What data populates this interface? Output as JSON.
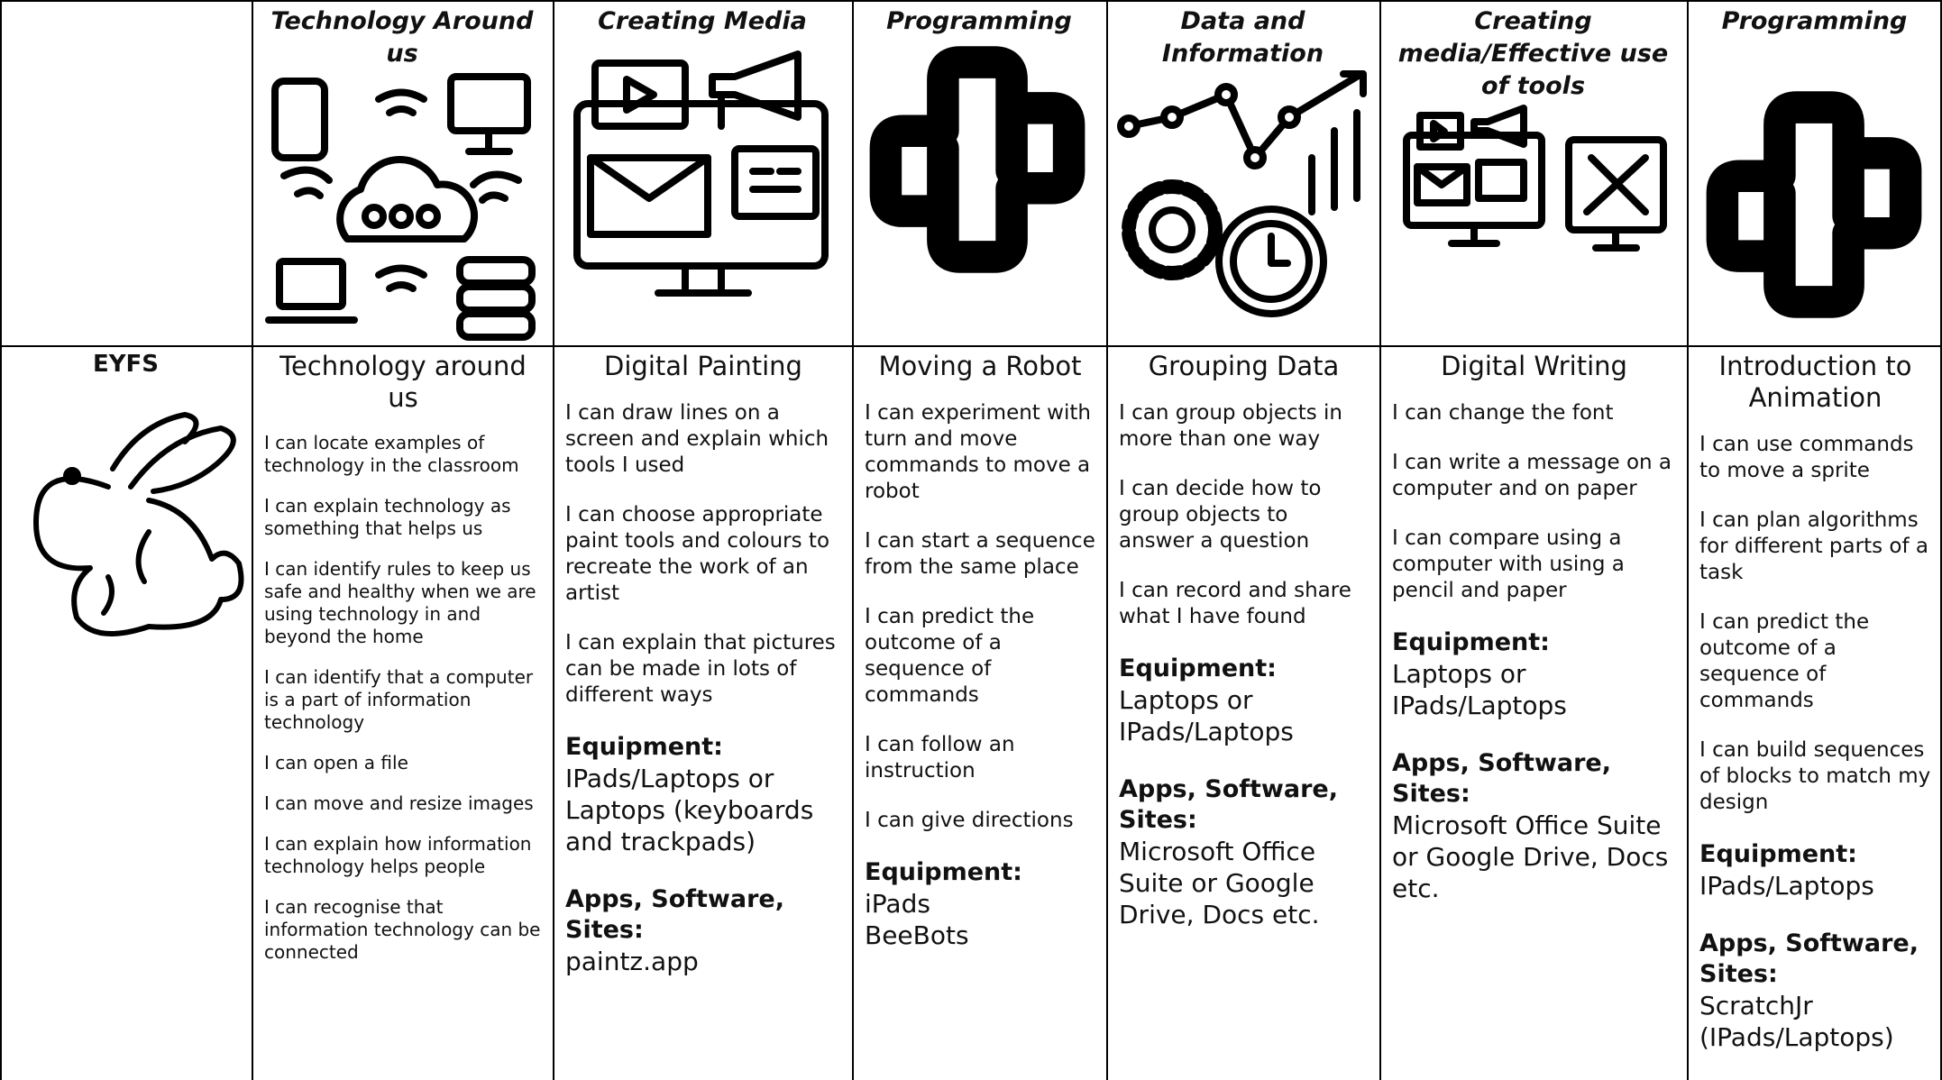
{
  "header": {
    "columns": [
      "Technology Around us",
      "Creating Media",
      "Programming",
      "Data and Information",
      "Creating media/Effective use of tools",
      "Programming"
    ]
  },
  "row": {
    "label": "EYFS",
    "cells": [
      {
        "title": "Technology around us",
        "statements": [
          "I can locate examples of technology in the classroom",
          "I can explain technology as something that helps us",
          "I can identify rules to keep us safe and healthy when we are using technology in and beyond the home",
          "I can identify that a computer is a part of information technology",
          "I can open a file",
          "I can move and resize images",
          "I can explain how information technology helps people",
          "I can recognise that information technology can be connected"
        ]
      },
      {
        "title": "Digital Painting",
        "statements": [
          "I can draw lines on a screen and explain which tools I used",
          "I can choose appropriate paint tools and colours to recreate the work of an artist",
          "I can explain that pictures can be made in lots of different ways"
        ],
        "equipment_label": "Equipment:",
        "equipment": [
          "IPads/Laptops or Laptops (keyboards and trackpads)"
        ],
        "apps_label": "Apps, Software, Sites:",
        "apps": [
          "paintz.app"
        ]
      },
      {
        "title": "Moving a Robot",
        "statements": [
          "I can experiment with turn and move commands to move a robot",
          "I can start a sequence from the same place",
          "I can predict the outcome of a sequence of commands",
          "I can follow an instruction",
          "I can give directions"
        ],
        "equipment_label": "Equipment:",
        "equipment": [
          "iPads",
          "BeeBots"
        ]
      },
      {
        "title": "Grouping Data",
        "statements": [
          "I can group objects in more than one way",
          "I can decide how to group objects to answer a question",
          "I can record and share what I have found"
        ],
        "equipment_label": "Equipment:",
        "equipment": [
          "Laptops or IPads/Laptops"
        ],
        "apps_label": "Apps, Software, Sites:",
        "apps": [
          "Microsoft Office Suite or Google Drive, Docs etc."
        ]
      },
      {
        "title": "Digital Writing",
        "statements": [
          "I can change the font",
          "I can write a message on a computer and on paper",
          "I can compare using a computer with using a pencil and paper"
        ],
        "equipment_label": "Equipment:",
        "equipment": [
          "Laptops or IPads/Laptops"
        ],
        "apps_label": "Apps, Software, Sites:",
        "apps": [
          "Microsoft Office Suite or Google Drive, Docs etc."
        ]
      },
      {
        "title": "Introduction to Animation",
        "statements": [
          "I can use commands to move a sprite",
          "I can plan algorithms for different parts of a task",
          "I can predict the outcome of a sequence of commands",
          "I can build sequences of blocks to match my design"
        ],
        "equipment_label": "Equipment:",
        "equipment": [
          "IPads/Laptops"
        ],
        "apps_label": "Apps, Software, Sites:",
        "apps": [
          "ScratchJr (IPads/Laptops)"
        ]
      }
    ]
  }
}
